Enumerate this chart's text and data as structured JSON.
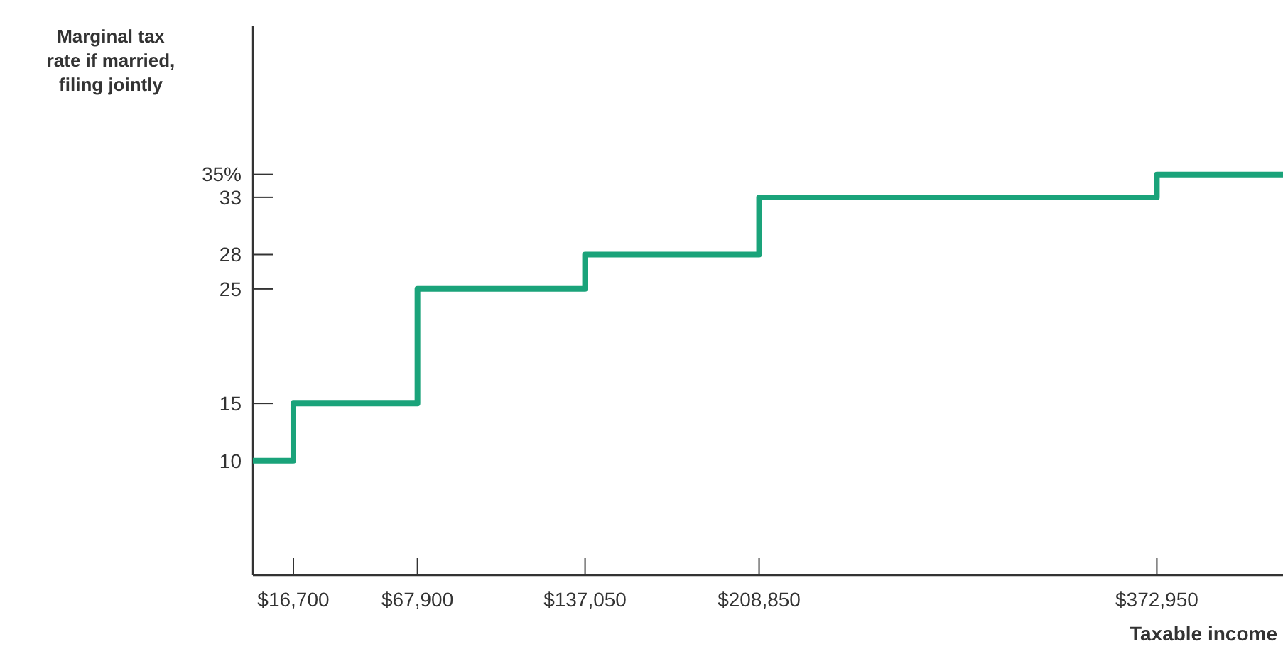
{
  "chart_data": {
    "type": "step",
    "ylabel": "Marginal tax rate if married, filing jointly",
    "xlabel": "Taxable income",
    "x": [
      0,
      16700,
      67900,
      137050,
      208850,
      372950,
      425000
    ],
    "values": [
      10,
      15,
      25,
      28,
      33,
      35,
      35
    ],
    "color": "#1aa37a",
    "xlim": [
      0,
      425000
    ],
    "ylim": [
      0,
      48
    ],
    "xticks": [
      {
        "value": 16700,
        "label": "$16,700"
      },
      {
        "value": 67900,
        "label": "$67,900"
      },
      {
        "value": 137050,
        "label": "$137,050"
      },
      {
        "value": 208850,
        "label": "$208,850"
      },
      {
        "value": 372950,
        "label": "$372,950"
      }
    ],
    "yticks": [
      10,
      15,
      25,
      28,
      33,
      {
        "value": 35,
        "label": "35%"
      }
    ]
  }
}
